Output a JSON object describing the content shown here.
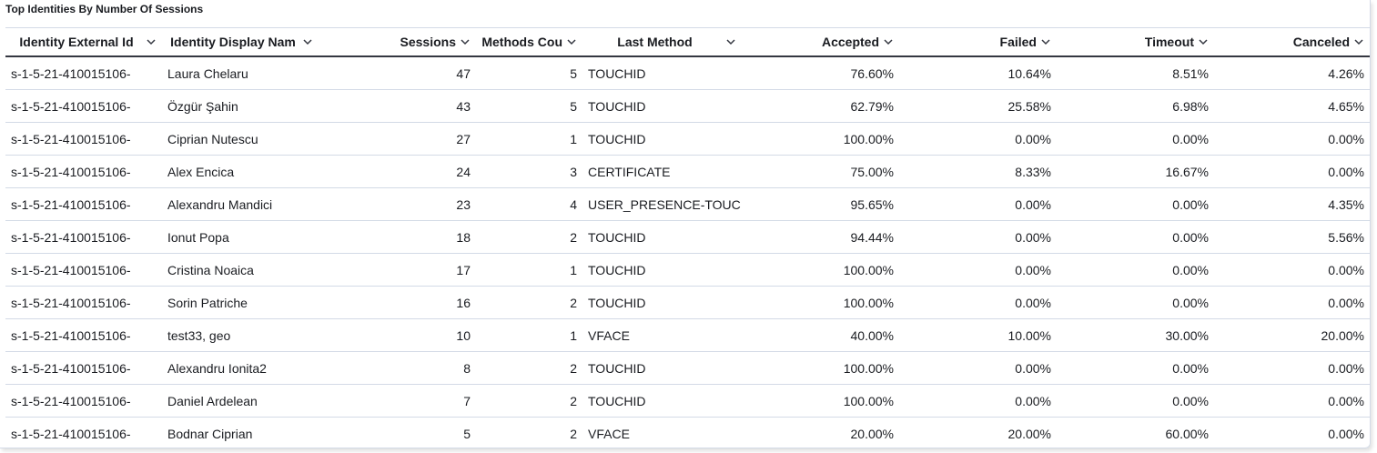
{
  "title": "Top Identities By Number Of Sessions",
  "table": {
    "columns": [
      "Identity External Id",
      "Identity Display Nam",
      "Sessions",
      "Methods Cou",
      "Last Method",
      "Accepted",
      "Failed",
      "Timeout",
      "Canceled"
    ],
    "rows": [
      [
        "s-1-5-21-410015106-",
        "Laura Chelaru",
        "47",
        "5",
        "TOUCHID",
        "76.60%",
        "10.64%",
        "8.51%",
        "4.26%"
      ],
      [
        "s-1-5-21-410015106-",
        "Özgür Şahin",
        "43",
        "5",
        "TOUCHID",
        "62.79%",
        "25.58%",
        "6.98%",
        "4.65%"
      ],
      [
        "s-1-5-21-410015106-",
        "Ciprian Nutescu",
        "27",
        "1",
        "TOUCHID",
        "100.00%",
        "0.00%",
        "0.00%",
        "0.00%"
      ],
      [
        "s-1-5-21-410015106-",
        "Alex Encica",
        "24",
        "3",
        "CERTIFICATE",
        "75.00%",
        "8.33%",
        "16.67%",
        "0.00%"
      ],
      [
        "s-1-5-21-410015106-",
        "Alexandru Mandici",
        "23",
        "4",
        "USER_PRESENCE-TOUC",
        "95.65%",
        "0.00%",
        "0.00%",
        "4.35%"
      ],
      [
        "s-1-5-21-410015106-",
        "Ionut Popa",
        "18",
        "2",
        "TOUCHID",
        "94.44%",
        "0.00%",
        "0.00%",
        "5.56%"
      ],
      [
        "s-1-5-21-410015106-",
        "Cristina Noaica",
        "17",
        "1",
        "TOUCHID",
        "100.00%",
        "0.00%",
        "0.00%",
        "0.00%"
      ],
      [
        "s-1-5-21-410015106-",
        "Sorin Patriche",
        "16",
        "2",
        "TOUCHID",
        "100.00%",
        "0.00%",
        "0.00%",
        "0.00%"
      ],
      [
        "s-1-5-21-410015106-",
        "test33, geo",
        "10",
        "1",
        "VFACE",
        "40.00%",
        "10.00%",
        "30.00%",
        "20.00%"
      ],
      [
        "s-1-5-21-410015106-",
        "Alexandru Ionita2",
        "8",
        "2",
        "TOUCHID",
        "100.00%",
        "0.00%",
        "0.00%",
        "0.00%"
      ],
      [
        "s-1-5-21-410015106-",
        "Daniel Ardelean",
        "7",
        "2",
        "TOUCHID",
        "100.00%",
        "0.00%",
        "0.00%",
        "0.00%"
      ],
      [
        "s-1-5-21-410015106-",
        "Bodnar Ciprian",
        "5",
        "2",
        "VFACE",
        "20.00%",
        "20.00%",
        "60.00%",
        "0.00%"
      ]
    ]
  }
}
